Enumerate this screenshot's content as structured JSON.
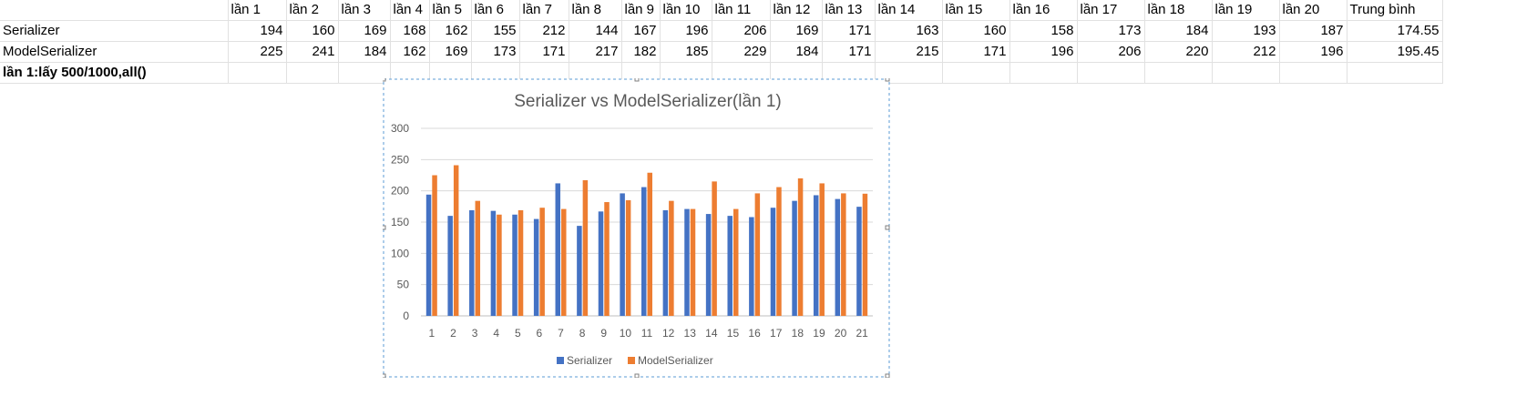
{
  "sheet": {
    "header": [
      "",
      "lần 1",
      "lần 2",
      "lần 3",
      "lần 4",
      "lần 5",
      "lần 6",
      "lần 7",
      "lần 8",
      "lần 9",
      "lần 10",
      "lần 11",
      "lần 12",
      "lần 13",
      "lần 14",
      "lần 15",
      "lần 16",
      "lần 17",
      "lần 18",
      "lần 19",
      "lần 20",
      "Trung  bình"
    ],
    "rows": [
      [
        "Serializer",
        "194",
        "160",
        "169",
        "168",
        "162",
        "155",
        "212",
        "144",
        "167",
        "196",
        "206",
        "169",
        "171",
        "163",
        "160",
        "158",
        "173",
        "184",
        "193",
        "187",
        "174.55"
      ],
      [
        "ModelSerializer",
        "225",
        "241",
        "184",
        "162",
        "169",
        "173",
        "171",
        "217",
        "182",
        "185",
        "229",
        "184",
        "171",
        "215",
        "171",
        "196",
        "206",
        "220",
        "212",
        "196",
        "195.45"
      ]
    ],
    "note": "lần 1:lấy 500/1000,all()"
  },
  "chart_data": {
    "type": "bar",
    "title": "Serializer vs ModelSerializer(lần 1)",
    "categories": [
      "1",
      "2",
      "3",
      "4",
      "5",
      "6",
      "7",
      "8",
      "9",
      "10",
      "11",
      "12",
      "13",
      "14",
      "15",
      "16",
      "17",
      "18",
      "19",
      "20",
      "21"
    ],
    "series": [
      {
        "name": "Serializer",
        "color": "#4472c4",
        "values": [
          194,
          160,
          169,
          168,
          162,
          155,
          212,
          144,
          167,
          196,
          206,
          169,
          171,
          163,
          160,
          158,
          173,
          184,
          193,
          187,
          174.55
        ]
      },
      {
        "name": "ModelSerializer",
        "color": "#ed7d31",
        "values": [
          225,
          241,
          184,
          162,
          169,
          173,
          171,
          217,
          182,
          185,
          229,
          184,
          171,
          215,
          171,
          196,
          206,
          220,
          212,
          196,
          195.45
        ]
      }
    ],
    "ylim": [
      0,
      300
    ],
    "yticks": [
      "0",
      "50",
      "100",
      "150",
      "200",
      "250",
      "300"
    ],
    "grid": true,
    "legend": "bottom"
  }
}
